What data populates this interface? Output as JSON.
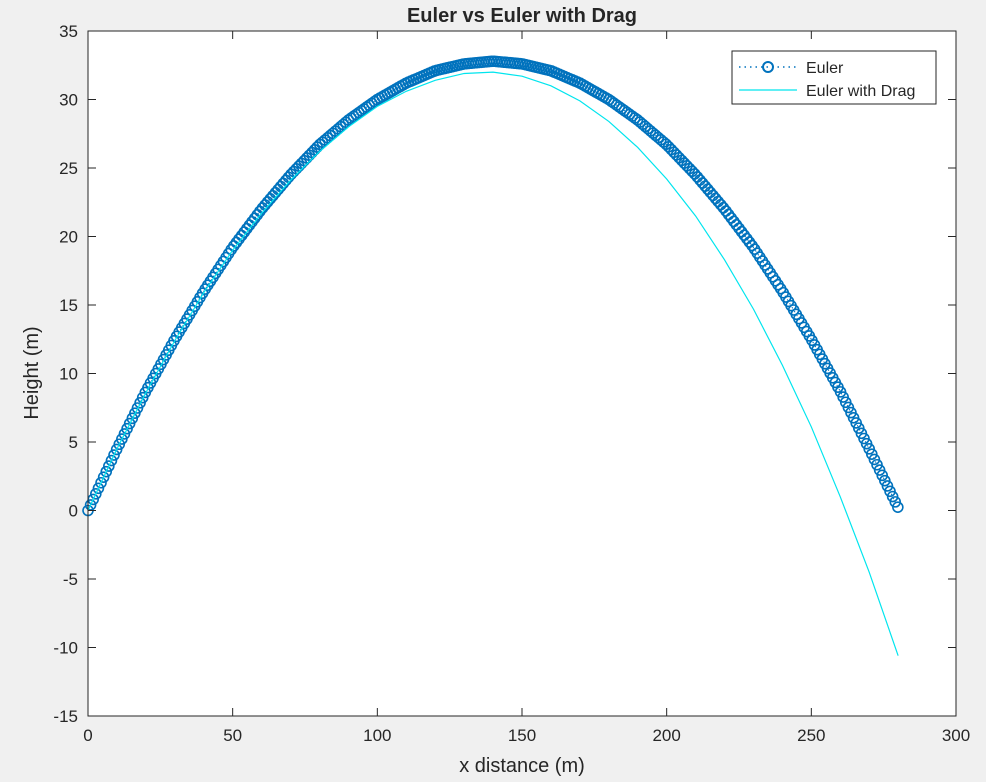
{
  "chart_data": {
    "type": "line",
    "title": "Euler vs Euler with Drag",
    "xlabel": "x distance (m)",
    "ylabel": "Height (m)",
    "xlim": [
      0,
      300
    ],
    "ylim": [
      -15,
      35
    ],
    "xticks": [
      0,
      50,
      100,
      150,
      200,
      250,
      300
    ],
    "yticks": [
      -15,
      -10,
      -5,
      0,
      5,
      10,
      15,
      20,
      25,
      30,
      35
    ],
    "xtick_labels": [
      "0",
      "50",
      "100",
      "150",
      "200",
      "250",
      "300"
    ],
    "ytick_labels": [
      "-15",
      "-10",
      "-5",
      "0",
      "5",
      "10",
      "15",
      "20",
      "25",
      "30",
      "35"
    ],
    "grid": false,
    "legend_position": "top-right",
    "legend": [
      "Euler",
      "Euler with Drag"
    ],
    "series": [
      {
        "name": "Euler",
        "style": "dotted line with circle markers",
        "color": "#0072bd",
        "x": [
          0,
          10,
          20,
          30,
          40,
          50,
          60,
          70,
          80,
          90,
          100,
          110,
          120,
          130,
          140,
          150,
          160,
          170,
          180,
          190,
          200,
          210,
          220,
          230,
          240,
          250,
          260,
          270,
          280
        ],
        "y": [
          0,
          4.5,
          8.7,
          12.5,
          16.0,
          19.2,
          22.0,
          24.5,
          26.7,
          28.5,
          30.0,
          31.2,
          32.1,
          32.6,
          32.8,
          32.6,
          32.1,
          31.2,
          30.0,
          28.5,
          26.7,
          24.5,
          22.0,
          19.2,
          16.0,
          12.5,
          8.7,
          4.5,
          0.2
        ]
      },
      {
        "name": "Euler with Drag",
        "style": "solid line",
        "color": "#00e5ee",
        "x": [
          0,
          10,
          20,
          30,
          40,
          50,
          60,
          70,
          80,
          90,
          100,
          110,
          120,
          130,
          140,
          150,
          160,
          170,
          180,
          190,
          200,
          210,
          220,
          230,
          240,
          250,
          260,
          270,
          280
        ],
        "y": [
          0,
          4.5,
          8.6,
          12.4,
          15.9,
          19.0,
          21.7,
          24.1,
          26.2,
          28.0,
          29.5,
          30.6,
          31.4,
          31.9,
          32.0,
          31.7,
          31.0,
          29.9,
          28.4,
          26.5,
          24.2,
          21.5,
          18.3,
          14.7,
          10.6,
          6.1,
          1.0,
          -4.5,
          -10.6
        ]
      }
    ]
  }
}
